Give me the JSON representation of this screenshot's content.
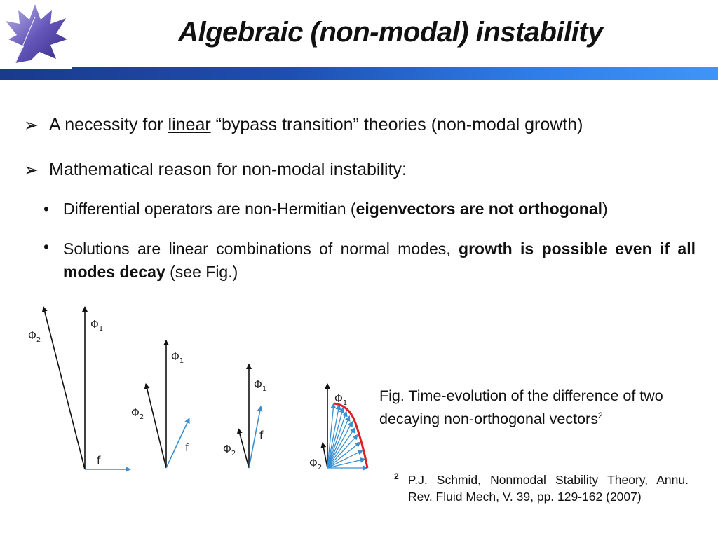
{
  "title": "Algebraic (non-modal) instability",
  "bullets": {
    "b1": {
      "pre": "A necessity for ",
      "underlined": "linear",
      "post": " “bypass transition” theories (non-modal growth)"
    },
    "b2": {
      "text": "Mathematical reason for non-modal instability:"
    },
    "s1": {
      "pre": "Differential operators are non-Hermitian (",
      "bold": "eigenvectors are not orthogonal",
      "post": ")"
    },
    "s2": {
      "pre": "Solutions are linear combinations of normal modes, ",
      "bold": "growth is possible even if all modes decay",
      "post": " (see Fig.)"
    }
  },
  "figure": {
    "labels": {
      "phi": "Φ",
      "sub1": "1",
      "sub2": "2",
      "f": "f"
    },
    "colors": {
      "basis": "#111111",
      "difference": "#3a8fd0",
      "trajectory": "#e02020"
    }
  },
  "caption": {
    "text": "Fig. Time-evolution of the difference of two decaying non-orthogonal vectors",
    "sup": "2"
  },
  "reference": {
    "sup": "2",
    "line1": " P.J. Schmid, Nonmodal Stability Theory, Annu.",
    "line2": "Rev. Fluid Mech, V. 39, pp. 129-162 (2007)"
  }
}
